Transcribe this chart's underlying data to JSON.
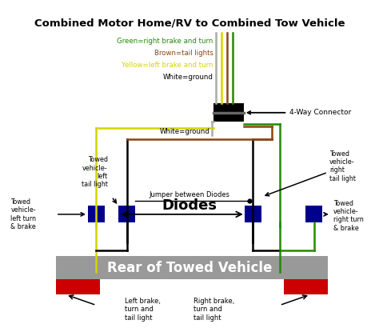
{
  "title": "Combined Motor Home/RV to Combined Tow Vehicle",
  "bg_color": "#ffffff",
  "green": "#228B00",
  "brown": "#8B4513",
  "yellow": "#d4d400",
  "white_wire": "#aaaaaa",
  "black": "#000000",
  "diode_color": "#00008B",
  "light_color": "#cc0000",
  "rear_bar_color": "#999999",
  "connector_label": "4-Way Connector",
  "diodes_label": "Diodes",
  "jumper_label": "Jumper between Diodes",
  "rear_label": "Rear of Towed Vehicle",
  "wire_labels": [
    "Green=right brake and turn",
    "Brown=tail lights",
    "Yellow=left brake and turn",
    "White=ground"
  ],
  "white_ground2": "White=ground",
  "towed_ll": "Towed\nvehicle-\nleft turn\n& brake",
  "towed_lc": "Towed\nvehicle-\nleft\ntail light",
  "towed_rt": "Towed\nvehicle-\nright\ntail light",
  "towed_rr": "Towed\nvehicle-\nright turn\n& brake",
  "bottom_left": "Left brake,\nturn and\ntail light",
  "bottom_right": "Right brake,\nturn and\ntail light"
}
